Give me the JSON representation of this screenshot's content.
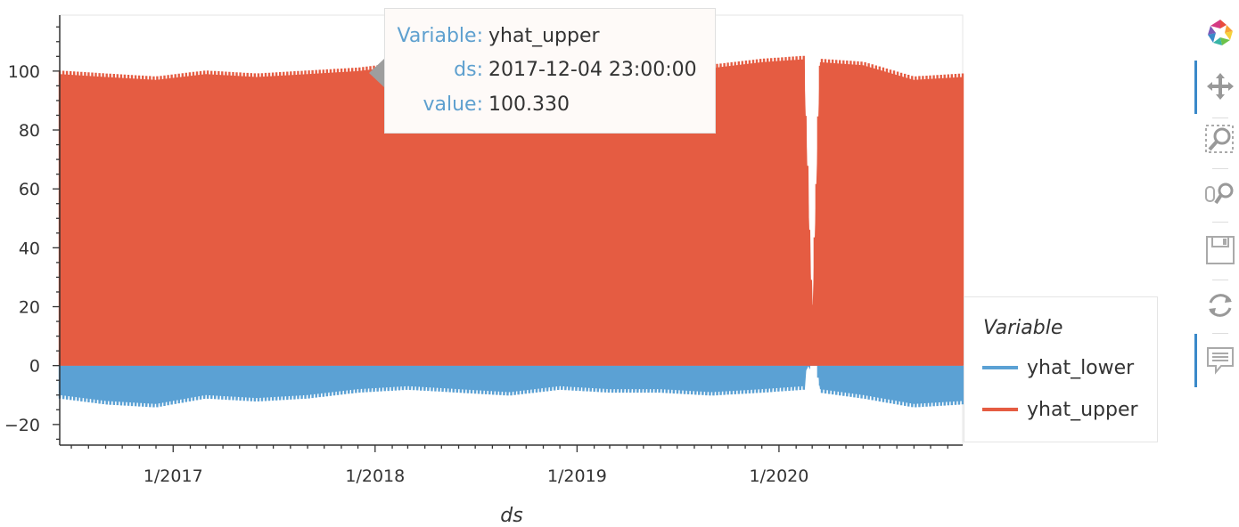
{
  "chart_data": {
    "type": "area",
    "xlabel": "ds",
    "ylabel": "",
    "x_ticks": [
      "1/2017",
      "1/2018",
      "1/2019",
      "1/2020"
    ],
    "y_ticks": [
      "100",
      "80",
      "60",
      "40",
      "20",
      "0",
      "−20"
    ],
    "xlim": [
      "2016-06-10",
      "2020-11-28"
    ],
    "ylim": [
      -27,
      119
    ],
    "grid": false,
    "legend": {
      "title": "Variable",
      "placement": "right"
    },
    "series": [
      {
        "name": "yhat_lower",
        "color": "#5ba1d4",
        "x": [
          "2016-06-10",
          "2016-09-01",
          "2016-12-01",
          "2017-03-01",
          "2017-06-01",
          "2017-09-01",
          "2017-12-01",
          "2018-03-01",
          "2018-06-01",
          "2018-09-01",
          "2018-12-01",
          "2019-03-01",
          "2019-06-01",
          "2019-09-01",
          "2019-12-01",
          "2020-02-15",
          "2020-03-01",
          "2020-03-15",
          "2020-06-01",
          "2020-09-01",
          "2020-11-28"
        ],
        "values": [
          -10,
          -12,
          -13,
          -10,
          -11,
          -10,
          -8,
          -7,
          -8,
          -9,
          -7,
          -8,
          -8,
          -9,
          -8,
          -7,
          15,
          -8,
          -10,
          -13,
          -12
        ]
      },
      {
        "name": "yhat_upper",
        "color": "#e55c42",
        "x": [
          "2016-06-10",
          "2016-09-01",
          "2016-12-01",
          "2017-03-01",
          "2017-06-01",
          "2017-09-01",
          "2017-12-01",
          "2018-03-01",
          "2018-06-01",
          "2018-09-01",
          "2018-12-01",
          "2019-03-01",
          "2019-06-01",
          "2019-09-01",
          "2019-12-01",
          "2020-02-15",
          "2020-03-01",
          "2020-03-15",
          "2020-06-01",
          "2020-09-01",
          "2020-11-28"
        ],
        "values": [
          99,
          98,
          97,
          99,
          98,
          99,
          100,
          102,
          101,
          100,
          102,
          103,
          102,
          101,
          103,
          104,
          15,
          103,
          102,
          97,
          98
        ]
      }
    ]
  },
  "tooltip": {
    "rows": [
      {
        "key": "Variable:",
        "value": "yhat_upper"
      },
      {
        "key": "ds:",
        "value": "2017-12-04 23:00:00"
      },
      {
        "key": "value:",
        "value": "100.330"
      }
    ]
  },
  "toolbar": {
    "icons": [
      "bokeh-logo-icon",
      "pan-icon",
      "box-zoom-icon",
      "wheel-zoom-icon",
      "save-icon",
      "reset-icon",
      "hover-icon"
    ]
  }
}
